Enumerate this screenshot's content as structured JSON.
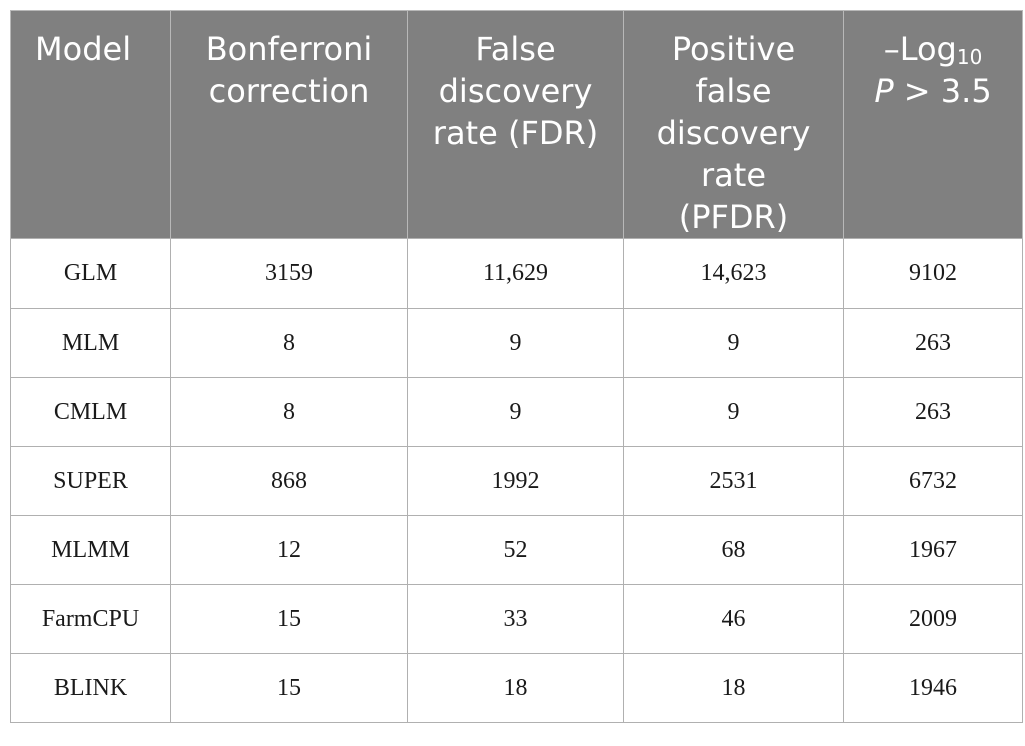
{
  "table": {
    "headers": [
      {
        "lines": [
          "Model"
        ]
      },
      {
        "lines": [
          "Bonferroni",
          "correction"
        ]
      },
      {
        "lines": [
          "False",
          "discovery",
          "rate (FDR)"
        ]
      },
      {
        "lines": [
          "Positive",
          "false",
          "discovery",
          "rate",
          "(PFDR)"
        ]
      },
      {
        "prefix": "–Log",
        "sub": "10",
        "line2_italic": "P",
        "line2_rest": " > 3.5"
      }
    ],
    "rows": [
      {
        "model": "GLM",
        "bonferroni": "3159",
        "fdr": "11,629",
        "pfdr": "14,623",
        "log10p": "9102"
      },
      {
        "model": "MLM",
        "bonferroni": "8",
        "fdr": "9",
        "pfdr": "9",
        "log10p": "263"
      },
      {
        "model": "CMLM",
        "bonferroni": "8",
        "fdr": "9",
        "pfdr": "9",
        "log10p": "263"
      },
      {
        "model": "SUPER",
        "bonferroni": "868",
        "fdr": "1992",
        "pfdr": "2531",
        "log10p": "6732"
      },
      {
        "model": "MLMM",
        "bonferroni": "12",
        "fdr": "52",
        "pfdr": "68",
        "log10p": "1967"
      },
      {
        "model": "FarmCPU",
        "bonferroni": "15",
        "fdr": "33",
        "pfdr": "46",
        "log10p": "2009"
      },
      {
        "model": "BLINK",
        "bonferroni": "15",
        "fdr": "18",
        "pfdr": "18",
        "log10p": "1946"
      }
    ]
  }
}
